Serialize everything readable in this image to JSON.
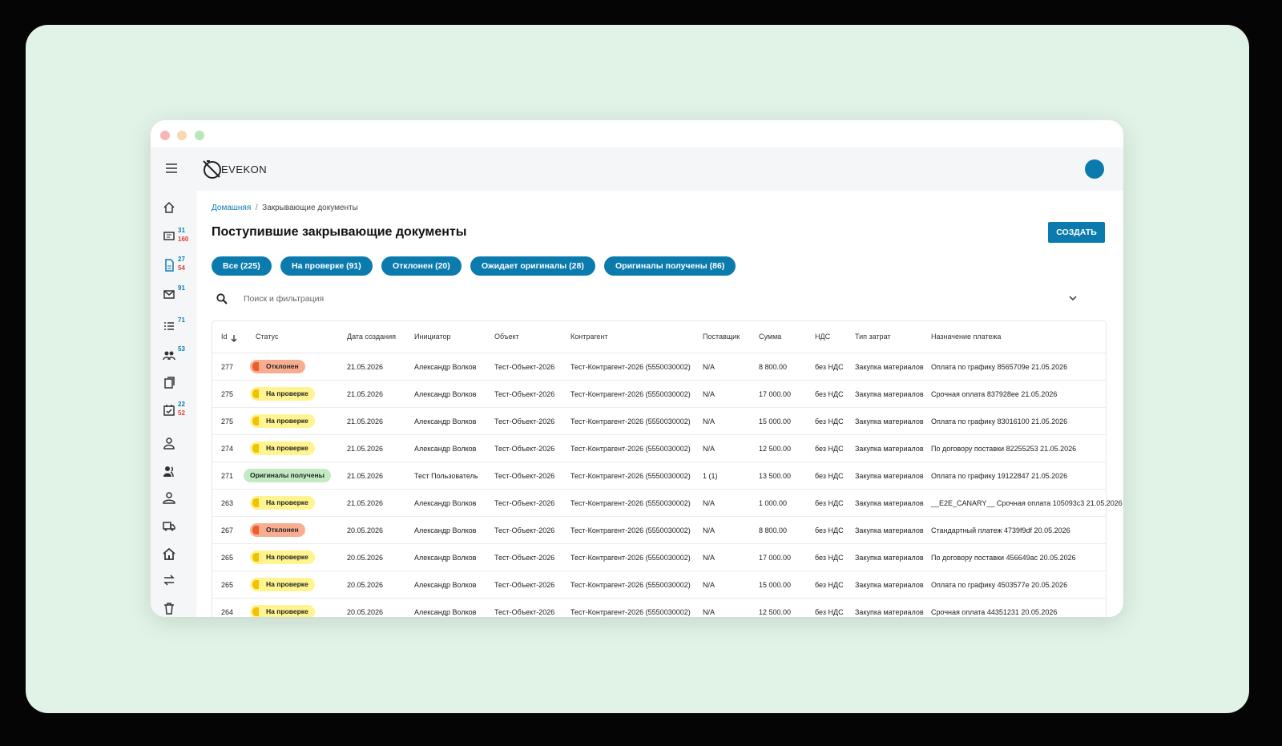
{
  "app": {
    "logo": "EVEKON"
  },
  "sidebar": {
    "badges": [
      {
        "count": 31,
        "alert": 160
      },
      {
        "count": 27,
        "alert": 54
      },
      {
        "count": 91
      },
      {
        "count": 71
      },
      {
        "count": 53
      },
      {
        "count": 22,
        "alert": 52
      }
    ]
  },
  "breadcrumb": [
    "Домашняя",
    "Закрывающие документы"
  ],
  "page_title": "Поступившие закрывающие документы",
  "create_button": "СОЗДАТЬ",
  "tabs": [
    "Все (225)",
    "На проверке (91)",
    "Отклонен (20)",
    "Ожидает оригиналы (28)",
    "Оригиналы получены (86)"
  ],
  "search_placeholder": "Поиск и фильтрация",
  "table": {
    "columns": [
      "Id",
      "Статус",
      "Дата создания",
      "Инициатор",
      "Объект",
      "Контрагент",
      "Поставщик",
      "Сумма",
      "НДС",
      "Тип затрат",
      "Назначение платежа"
    ],
    "status_styles": {
      "Отклонен": {
        "bg": "#f9ad90",
        "dot": "#ef5b2a"
      },
      "На проверке": {
        "bg": "#fff48f",
        "dot": "#f2c200"
      },
      "Оригиналы получены": {
        "bg": "#c2eac3",
        "dot": "#c2eac3"
      }
    },
    "rows": [
      [
        277,
        "Отклонен",
        "21.05.2026",
        "Александр Волков",
        "Тест-Объект-2026",
        "Тест-Контрагент-2026 (5550030002)",
        "N/A",
        "8 800.00",
        "без НДС",
        "Закупка материалов",
        "Оплата по графику 8565709e 21.05.2026"
      ],
      [
        275,
        "На проверке",
        "21.05.2026",
        "Александр Волков",
        "Тест-Объект-2026",
        "Тест-Контрагент-2026 (5550030002)",
        "N/A",
        "17 000.00",
        "без НДС",
        "Закупка материалов",
        "Срочная оплата 837928ee 21.05.2026"
      ],
      [
        275,
        "На проверке",
        "21.05.2026",
        "Александр Волков",
        "Тест-Объект-2026",
        "Тест-Контрагент-2026 (5550030002)",
        "N/A",
        "15 000.00",
        "без НДС",
        "Закупка материалов",
        "Оплата по графику 83016100 21.05.2026"
      ],
      [
        274,
        "На проверке",
        "21.05.2026",
        "Александр Волков",
        "Тест-Объект-2026",
        "Тест-Контрагент-2026 (5550030002)",
        "N/A",
        "12 500.00",
        "без НДС",
        "Закупка материалов",
        "По договору поставки 82255253 21.05.2026"
      ],
      [
        271,
        "Оригиналы получены",
        "21.05.2026",
        "Тест Пользователь",
        "Тест-Объект-2026",
        "Тест-Контрагент-2026 (5550030002)",
        "1 (1)",
        "13 500.00",
        "без НДС",
        "Закупка материалов",
        "Оплата по графику 19122847 21.05.2026"
      ],
      [
        263,
        "На проверке",
        "21.05.2026",
        "Александр Волков",
        "Тест-Объект-2026",
        "Тест-Контрагент-2026 (5550030002)",
        "N/A",
        "1 000.00",
        "без НДС",
        "Закупка материалов",
        "__E2E_CANARY__ Срочная оплата 105093c3 21.05.2026"
      ],
      [
        267,
        "Отклонен",
        "20.05.2026",
        "Александр Волков",
        "Тест-Объект-2026",
        "Тест-Контрагент-2026 (5550030002)",
        "N/A",
        "8 800.00",
        "без НДС",
        "Закупка материалов",
        "Стандартный платеж 4739f9df 20.05.2026"
      ],
      [
        265,
        "На проверке",
        "20.05.2026",
        "Александр Волков",
        "Тест-Объект-2026",
        "Тест-Контрагент-2026 (5550030002)",
        "N/A",
        "17 000.00",
        "без НДС",
        "Закупка материалов",
        "По договору поставки 456649ac 20.05.2026"
      ],
      [
        265,
        "На проверке",
        "20.05.2026",
        "Александр Волков",
        "Тест-Объект-2026",
        "Тест-Контрагент-2026 (5550030002)",
        "N/A",
        "15 000.00",
        "без НДС",
        "Закупка материалов",
        "Оплата по графику 4503577e 20.05.2026"
      ],
      [
        264,
        "На проверке",
        "20.05.2026",
        "Александр Волков",
        "Тест-Объект-2026",
        "Тест-Контрагент-2026 (5550030002)",
        "N/A",
        "12 500.00",
        "без НДС",
        "Закупка материалов",
        "Срочная оплата 44351231 20.05.2026"
      ]
    ]
  }
}
